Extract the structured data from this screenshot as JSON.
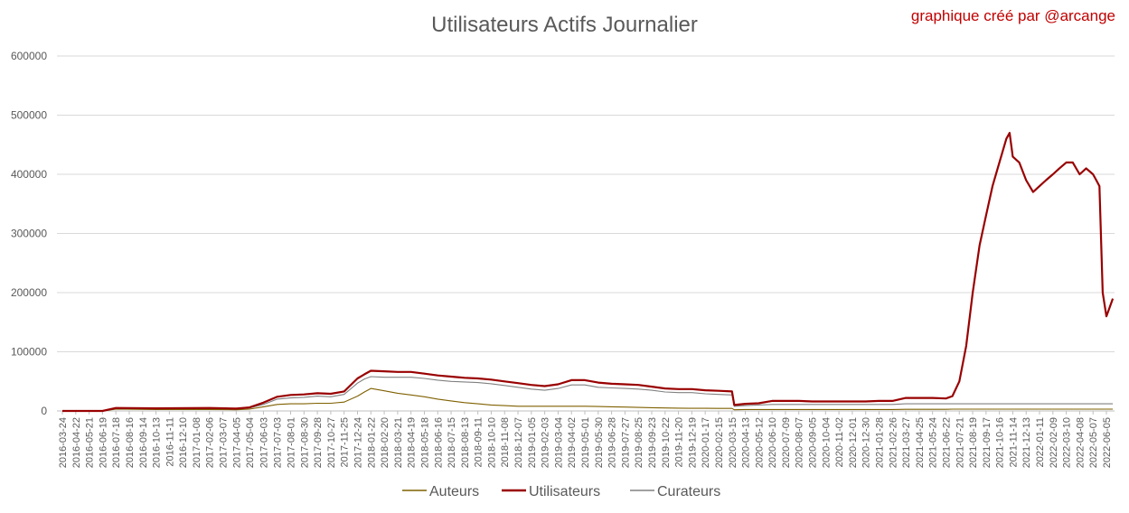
{
  "chart_data": {
    "type": "line",
    "title": "Utilisateurs Actifs Journalier",
    "credit": "graphique créé par @arcange",
    "ylim": [
      0,
      600000
    ],
    "yticks": [
      "0",
      "100000",
      "200000",
      "300000",
      "400000",
      "500000",
      "600000"
    ],
    "grid": true,
    "legend_position": "bottom",
    "x_tick_labels": [
      "2016-03-24",
      "2016-04-22",
      "2016-05-21",
      "2016-06-19",
      "2016-07-18",
      "2016-08-16",
      "2016-09-14",
      "2016-10-13",
      "2016-11-11",
      "2016-12-10",
      "2017-01-08",
      "2017-02-06",
      "2017-03-07",
      "2017-04-05",
      "2017-05-04",
      "2017-06-03",
      "2017-07-03",
      "2017-08-01",
      "2017-08-30",
      "2017-09-28",
      "2017-10-27",
      "2017-11-25",
      "2017-12-24",
      "2018-01-22",
      "2018-02-20",
      "2018-03-21",
      "2018-04-19",
      "2018-05-18",
      "2018-06-16",
      "2018-07-15",
      "2018-08-13",
      "2018-09-11",
      "2018-10-10",
      "2018-11-08",
      "2018-12-07",
      "2019-01-05",
      "2019-02-03",
      "2019-03-04",
      "2019-04-02",
      "2019-05-01",
      "2019-05-30",
      "2019-06-28",
      "2019-07-27",
      "2019-08-25",
      "2019-09-23",
      "2019-10-22",
      "2019-11-20",
      "2019-12-19",
      "2020-01-17",
      "2020-02-15",
      "2020-03-15",
      "2020-04-13",
      "2020-05-12",
      "2020-06-10",
      "2020-07-09",
      "2020-08-07",
      "2020-09-05",
      "2020-10-04",
      "2020-11-02",
      "2020-12-01",
      "2020-12-30",
      "2021-01-28",
      "2021-02-26",
      "2021-03-27",
      "2021-04-25",
      "2021-05-24",
      "2021-06-22",
      "2021-07-21",
      "2021-08-19",
      "2021-09-17",
      "2021-10-16",
      "2021-11-14",
      "2021-12-13",
      "2022-01-11",
      "2022-02-09",
      "2022-03-10",
      "2022-04-08",
      "2022-05-07",
      "2022-06-05"
    ],
    "x": [
      "2016-03-24",
      "2016-06-19",
      "2016-07-18",
      "2016-10-13",
      "2017-02-06",
      "2017-04-05",
      "2017-05-04",
      "2017-06-03",
      "2017-07-03",
      "2017-08-01",
      "2017-08-30",
      "2017-09-28",
      "2017-10-27",
      "2017-11-25",
      "2017-12-24",
      "2018-01-08",
      "2018-01-22",
      "2018-02-20",
      "2018-03-21",
      "2018-04-19",
      "2018-05-18",
      "2018-06-16",
      "2018-07-15",
      "2018-08-13",
      "2018-09-11",
      "2018-10-10",
      "2018-11-08",
      "2018-12-07",
      "2019-01-05",
      "2019-02-03",
      "2019-03-04",
      "2019-04-02",
      "2019-05-01",
      "2019-05-30",
      "2019-06-28",
      "2019-07-27",
      "2019-08-25",
      "2019-09-23",
      "2019-10-22",
      "2019-11-20",
      "2019-12-19",
      "2020-01-17",
      "2020-02-15",
      "2020-03-15",
      "2020-03-20",
      "2020-04-13",
      "2020-05-12",
      "2020-06-10",
      "2020-07-09",
      "2020-08-07",
      "2020-09-05",
      "2020-10-04",
      "2020-11-02",
      "2020-12-01",
      "2020-12-30",
      "2021-01-28",
      "2021-02-26",
      "2021-03-27",
      "2021-04-25",
      "2021-05-24",
      "2021-06-22",
      "2021-07-06",
      "2021-07-21",
      "2021-08-05",
      "2021-08-19",
      "2021-09-03",
      "2021-09-17",
      "2021-10-01",
      "2021-10-16",
      "2021-10-31",
      "2021-11-07",
      "2021-11-14",
      "2021-11-28",
      "2021-12-13",
      "2021-12-28",
      "2022-01-11",
      "2022-01-25",
      "2022-02-09",
      "2022-02-23",
      "2022-03-10",
      "2022-03-24",
      "2022-04-08",
      "2022-04-22",
      "2022-05-07",
      "2022-05-14",
      "2022-05-21",
      "2022-05-28",
      "2022-06-05",
      "2022-06-12",
      "2022-06-19"
    ],
    "series": [
      {
        "name": "Auteurs",
        "color": "#7f6000",
        "values": [
          0,
          0,
          3000,
          2500,
          2500,
          2000,
          3000,
          7000,
          11000,
          12000,
          12000,
          13000,
          13000,
          15000,
          25000,
          32000,
          38000,
          34000,
          30000,
          27000,
          24000,
          20000,
          17000,
          14000,
          12000,
          10000,
          9000,
          8000,
          8000,
          8000,
          8000,
          8000,
          8000,
          7500,
          7000,
          6500,
          6000,
          5500,
          5000,
          4800,
          4500,
          4500,
          4300,
          4200,
          2000,
          2500,
          2500,
          2500,
          2500,
          2500,
          2500,
          2500,
          2500,
          2500,
          2500,
          2500,
          2500,
          2800,
          2800,
          2800,
          2800,
          3000,
          3000,
          3000,
          3000,
          3000,
          3000,
          3000,
          3000,
          3000,
          3000,
          3000,
          3000,
          3000,
          3000,
          3000,
          3000,
          3000,
          3000,
          3000,
          3000,
          3000,
          3000,
          3000,
          3000,
          3000,
          3000,
          3000,
          3000,
          3000
        ]
      },
      {
        "name": "Utilisateurs",
        "color": "#990000",
        "values": [
          0,
          0,
          5000,
          4500,
          5000,
          4000,
          6000,
          14000,
          24000,
          27000,
          28000,
          30000,
          29000,
          33000,
          55000,
          62000,
          68000,
          67000,
          66000,
          66000,
          63000,
          60000,
          58000,
          56000,
          55000,
          53000,
          50000,
          47000,
          44000,
          42000,
          45000,
          52000,
          52000,
          48000,
          46000,
          45000,
          44000,
          41000,
          38000,
          37000,
          37000,
          35000,
          34000,
          33000,
          10000,
          12000,
          13000,
          17000,
          17000,
          17000,
          16000,
          16000,
          16000,
          16000,
          16000,
          17000,
          17000,
          22000,
          22000,
          22000,
          21000,
          25000,
          50000,
          110000,
          200000,
          280000,
          330000,
          380000,
          420000,
          460000,
          470000,
          430000,
          420000,
          390000,
          370000,
          380000,
          390000,
          400000,
          410000,
          420000,
          420000,
          400000,
          410000,
          400000,
          390000,
          380000,
          200000,
          160000,
          175000,
          190000
        ]
      },
      {
        "name": "Curateurs",
        "color": "#808080",
        "values": [
          0,
          0,
          4000,
          3500,
          4000,
          3000,
          5000,
          11000,
          20000,
          22000,
          23000,
          25000,
          24000,
          28000,
          47000,
          54000,
          58000,
          57000,
          57000,
          57000,
          55000,
          52000,
          50000,
          49000,
          48000,
          46000,
          43000,
          40000,
          37000,
          35000,
          38000,
          44000,
          44000,
          40000,
          39000,
          38000,
          37000,
          35000,
          32000,
          31000,
          31000,
          29000,
          28000,
          27000,
          8000,
          9000,
          10000,
          11000,
          11000,
          11000,
          11000,
          11000,
          11000,
          11000,
          11000,
          11000,
          11000,
          12000,
          12000,
          12000,
          12000,
          12000,
          12000,
          12000,
          12000,
          12000,
          12000,
          12000,
          12000,
          12000,
          12000,
          12000,
          12000,
          12000,
          12000,
          12000,
          12000,
          12000,
          12000,
          12000,
          12000,
          12000,
          12000,
          12000,
          12000,
          12000,
          12000,
          12000,
          12000,
          12000
        ]
      }
    ]
  }
}
